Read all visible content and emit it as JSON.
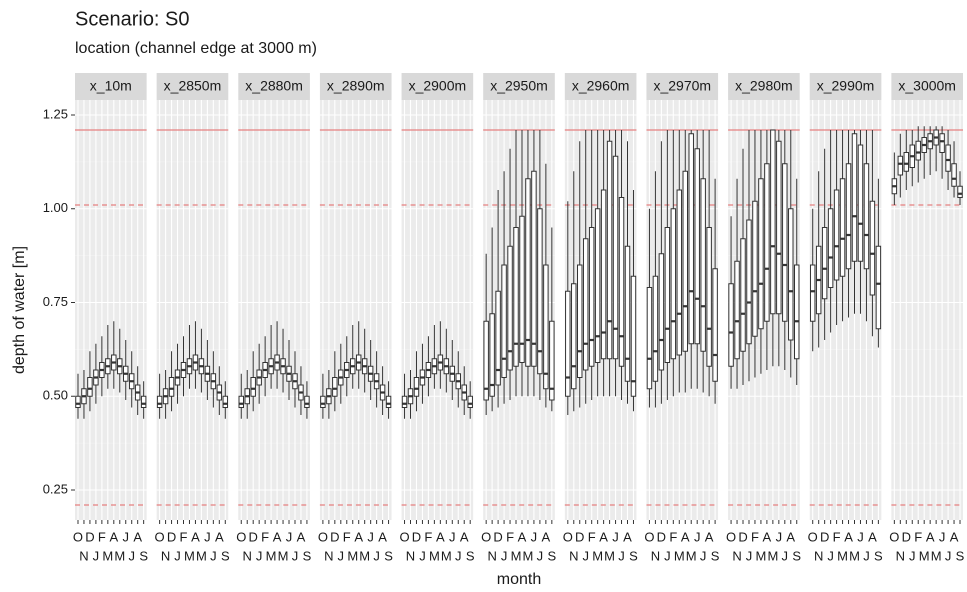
{
  "chart_data": {
    "type": "boxplot",
    "title": "Scenario: S0",
    "subtitle": "location (channel edge at 3000 m)",
    "x_label": "month",
    "y_label": "depth of water [m]",
    "categories": [
      "O",
      "N",
      "D",
      "J",
      "F",
      "M",
      "A",
      "M",
      "J",
      "J",
      "A",
      "S"
    ],
    "ylim": [
      0.17,
      1.29
    ],
    "yticks": [
      0.25,
      {
        "value": 0.5,
        "label": "0.50"
      },
      0.75,
      {
        "value": 1,
        "label": "1.00"
      },
      1.25
    ],
    "grid": true,
    "box_color": "#333333",
    "reference_lines": [
      {
        "value": 1.21,
        "color": "#e58080",
        "dashed": false
      },
      {
        "value": 1.01,
        "color": "#e58080",
        "dashed": true
      },
      {
        "value": 0.21,
        "color": "#e58080",
        "dashed": true
      }
    ],
    "panels": [
      {
        "name": "x_10m",
        "min": [
          0.44,
          0.44,
          0.46,
          0.48,
          0.5,
          0.52,
          0.52,
          0.51,
          0.49,
          0.47,
          0.45,
          0.44
        ],
        "q1": [
          0.47,
          0.48,
          0.5,
          0.53,
          0.55,
          0.56,
          0.57,
          0.56,
          0.54,
          0.52,
          0.49,
          0.47
        ],
        "median": [
          0.48,
          0.5,
          0.52,
          0.55,
          0.57,
          0.58,
          0.59,
          0.58,
          0.56,
          0.54,
          0.51,
          0.48
        ],
        "q3": [
          0.5,
          0.52,
          0.55,
          0.57,
          0.59,
          0.6,
          0.61,
          0.6,
          0.58,
          0.56,
          0.53,
          0.5
        ],
        "max": [
          0.56,
          0.57,
          0.62,
          0.64,
          0.66,
          0.69,
          0.7,
          0.68,
          0.65,
          0.62,
          0.58,
          0.54
        ]
      },
      {
        "name": "x_2850m",
        "min": [
          0.44,
          0.44,
          0.46,
          0.48,
          0.5,
          0.52,
          0.52,
          0.51,
          0.49,
          0.47,
          0.45,
          0.44
        ],
        "q1": [
          0.47,
          0.48,
          0.5,
          0.53,
          0.55,
          0.56,
          0.57,
          0.56,
          0.54,
          0.52,
          0.49,
          0.47
        ],
        "median": [
          0.48,
          0.5,
          0.52,
          0.55,
          0.57,
          0.58,
          0.59,
          0.58,
          0.56,
          0.54,
          0.51,
          0.48
        ],
        "q3": [
          0.5,
          0.52,
          0.55,
          0.57,
          0.59,
          0.6,
          0.61,
          0.6,
          0.58,
          0.56,
          0.53,
          0.5
        ],
        "max": [
          0.56,
          0.57,
          0.62,
          0.64,
          0.66,
          0.69,
          0.7,
          0.68,
          0.65,
          0.62,
          0.58,
          0.54
        ]
      },
      {
        "name": "x_2880m",
        "min": [
          0.44,
          0.44,
          0.46,
          0.48,
          0.5,
          0.52,
          0.52,
          0.51,
          0.49,
          0.47,
          0.45,
          0.44
        ],
        "q1": [
          0.47,
          0.48,
          0.5,
          0.53,
          0.55,
          0.56,
          0.57,
          0.56,
          0.54,
          0.52,
          0.49,
          0.47
        ],
        "median": [
          0.48,
          0.5,
          0.52,
          0.55,
          0.57,
          0.58,
          0.59,
          0.58,
          0.56,
          0.54,
          0.51,
          0.48
        ],
        "q3": [
          0.5,
          0.52,
          0.55,
          0.57,
          0.59,
          0.6,
          0.61,
          0.6,
          0.58,
          0.56,
          0.53,
          0.5
        ],
        "max": [
          0.56,
          0.57,
          0.62,
          0.64,
          0.66,
          0.69,
          0.7,
          0.68,
          0.65,
          0.62,
          0.58,
          0.54
        ]
      },
      {
        "name": "x_2890m",
        "min": [
          0.44,
          0.44,
          0.46,
          0.48,
          0.5,
          0.52,
          0.52,
          0.51,
          0.49,
          0.47,
          0.45,
          0.44
        ],
        "q1": [
          0.47,
          0.48,
          0.5,
          0.53,
          0.55,
          0.56,
          0.57,
          0.56,
          0.54,
          0.52,
          0.49,
          0.47
        ],
        "median": [
          0.48,
          0.5,
          0.52,
          0.55,
          0.57,
          0.58,
          0.59,
          0.58,
          0.56,
          0.54,
          0.51,
          0.48
        ],
        "q3": [
          0.5,
          0.52,
          0.55,
          0.57,
          0.59,
          0.6,
          0.61,
          0.6,
          0.58,
          0.56,
          0.53,
          0.5
        ],
        "max": [
          0.56,
          0.57,
          0.62,
          0.64,
          0.66,
          0.69,
          0.7,
          0.68,
          0.65,
          0.62,
          0.58,
          0.54
        ]
      },
      {
        "name": "x_2900m",
        "min": [
          0.44,
          0.44,
          0.46,
          0.48,
          0.5,
          0.52,
          0.52,
          0.51,
          0.49,
          0.47,
          0.45,
          0.44
        ],
        "q1": [
          0.47,
          0.48,
          0.5,
          0.53,
          0.55,
          0.56,
          0.57,
          0.56,
          0.54,
          0.52,
          0.49,
          0.47
        ],
        "median": [
          0.48,
          0.5,
          0.52,
          0.55,
          0.57,
          0.58,
          0.59,
          0.58,
          0.56,
          0.54,
          0.51,
          0.48
        ],
        "q3": [
          0.5,
          0.52,
          0.55,
          0.57,
          0.59,
          0.6,
          0.61,
          0.6,
          0.58,
          0.56,
          0.53,
          0.5
        ],
        "max": [
          0.56,
          0.57,
          0.62,
          0.64,
          0.66,
          0.69,
          0.7,
          0.68,
          0.65,
          0.62,
          0.58,
          0.54
        ]
      },
      {
        "name": "x_2950m",
        "min": [
          0.45,
          0.46,
          0.47,
          0.48,
          0.49,
          0.5,
          0.5,
          0.5,
          0.5,
          0.49,
          0.47,
          0.46
        ],
        "q1": [
          0.49,
          0.5,
          0.53,
          0.55,
          0.57,
          0.58,
          0.59,
          0.58,
          0.58,
          0.56,
          0.52,
          0.49
        ],
        "median": [
          0.52,
          0.53,
          0.57,
          0.6,
          0.62,
          0.64,
          0.64,
          0.65,
          0.64,
          0.62,
          0.56,
          0.52
        ],
        "q3": [
          0.7,
          0.72,
          0.78,
          0.85,
          0.9,
          0.95,
          0.98,
          1.08,
          1.1,
          1.0,
          0.85,
          0.7
        ],
        "max": [
          0.88,
          0.95,
          1.05,
          1.1,
          1.16,
          1.21,
          1.21,
          1.21,
          1.21,
          1.21,
          1.12,
          0.95
        ]
      },
      {
        "name": "x_2960m",
        "min": [
          0.45,
          0.46,
          0.47,
          0.48,
          0.49,
          0.5,
          0.5,
          0.5,
          0.5,
          0.49,
          0.48,
          0.46
        ],
        "q1": [
          0.5,
          0.52,
          0.55,
          0.57,
          0.58,
          0.59,
          0.6,
          0.6,
          0.6,
          0.58,
          0.54,
          0.5
        ],
        "median": [
          0.55,
          0.58,
          0.62,
          0.64,
          0.65,
          0.66,
          0.67,
          0.7,
          0.68,
          0.66,
          0.6,
          0.54
        ],
        "q3": [
          0.78,
          0.8,
          0.85,
          0.92,
          0.95,
          1.0,
          1.05,
          1.18,
          1.14,
          1.03,
          0.9,
          0.82
        ],
        "max": [
          1.02,
          1.1,
          1.18,
          1.21,
          1.21,
          1.21,
          1.21,
          1.21,
          1.21,
          1.21,
          1.18,
          1.05
        ]
      },
      {
        "name": "x_2970m",
        "min": [
          0.47,
          0.47,
          0.48,
          0.49,
          0.5,
          0.51,
          0.51,
          0.52,
          0.52,
          0.51,
          0.5,
          0.48
        ],
        "q1": [
          0.52,
          0.54,
          0.57,
          0.59,
          0.6,
          0.61,
          0.62,
          0.64,
          0.64,
          0.62,
          0.58,
          0.54
        ],
        "median": [
          0.6,
          0.62,
          0.65,
          0.68,
          0.7,
          0.72,
          0.74,
          0.78,
          0.76,
          0.74,
          0.68,
          0.61
        ],
        "q3": [
          0.79,
          0.82,
          0.88,
          0.95,
          1.0,
          1.05,
          1.1,
          1.2,
          1.16,
          1.08,
          0.95,
          0.84
        ],
        "max": [
          1.0,
          1.1,
          1.18,
          1.21,
          1.21,
          1.21,
          1.21,
          1.21,
          1.21,
          1.21,
          1.21,
          1.08
        ]
      },
      {
        "name": "x_2980m",
        "min": [
          0.52,
          0.52,
          0.53,
          0.54,
          0.55,
          0.56,
          0.57,
          0.58,
          0.58,
          0.57,
          0.55,
          0.53
        ],
        "q1": [
          0.58,
          0.6,
          0.62,
          0.64,
          0.66,
          0.68,
          0.7,
          0.72,
          0.72,
          0.7,
          0.65,
          0.6
        ],
        "median": [
          0.67,
          0.7,
          0.72,
          0.75,
          0.78,
          0.8,
          0.84,
          0.9,
          0.88,
          0.85,
          0.78,
          0.7
        ],
        "q3": [
          0.8,
          0.86,
          0.92,
          0.97,
          1.02,
          1.08,
          1.12,
          1.21,
          1.18,
          1.12,
          1.0,
          0.85
        ],
        "max": [
          0.98,
          1.08,
          1.16,
          1.21,
          1.21,
          1.21,
          1.21,
          1.21,
          1.21,
          1.21,
          1.21,
          1.08
        ]
      },
      {
        "name": "x_2990m",
        "min": [
          0.62,
          0.63,
          0.65,
          0.67,
          0.69,
          0.7,
          0.71,
          0.72,
          0.72,
          0.7,
          0.66,
          0.63
        ],
        "q1": [
          0.7,
          0.72,
          0.76,
          0.79,
          0.81,
          0.82,
          0.84,
          0.86,
          0.86,
          0.84,
          0.77,
          0.68
        ],
        "median": [
          0.78,
          0.81,
          0.84,
          0.87,
          0.9,
          0.92,
          0.93,
          0.98,
          0.96,
          0.93,
          0.88,
          0.8
        ],
        "q3": [
          0.85,
          0.9,
          0.95,
          1.0,
          1.05,
          1.08,
          1.12,
          1.2,
          1.17,
          1.12,
          1.02,
          0.9
        ],
        "max": [
          1.0,
          1.1,
          1.16,
          1.21,
          1.21,
          1.21,
          1.21,
          1.21,
          1.21,
          1.21,
          1.21,
          1.08
        ]
      },
      {
        "name": "x_3000m",
        "min": [
          1.01,
          1.03,
          1.05,
          1.06,
          1.07,
          1.08,
          1.09,
          1.1,
          1.08,
          1.05,
          1.03,
          1.01
        ],
        "q1": [
          1.04,
          1.09,
          1.1,
          1.11,
          1.13,
          1.15,
          1.16,
          1.17,
          1.15,
          1.1,
          1.06,
          1.03
        ],
        "median": [
          1.06,
          1.12,
          1.12,
          1.14,
          1.15,
          1.17,
          1.18,
          1.19,
          1.18,
          1.13,
          1.08,
          1.04
        ],
        "q3": [
          1.08,
          1.14,
          1.15,
          1.17,
          1.18,
          1.19,
          1.2,
          1.21,
          1.2,
          1.17,
          1.12,
          1.06
        ],
        "max": [
          1.15,
          1.2,
          1.21,
          1.21,
          1.22,
          1.22,
          1.22,
          1.22,
          1.22,
          1.21,
          1.18,
          1.1
        ]
      }
    ]
  }
}
